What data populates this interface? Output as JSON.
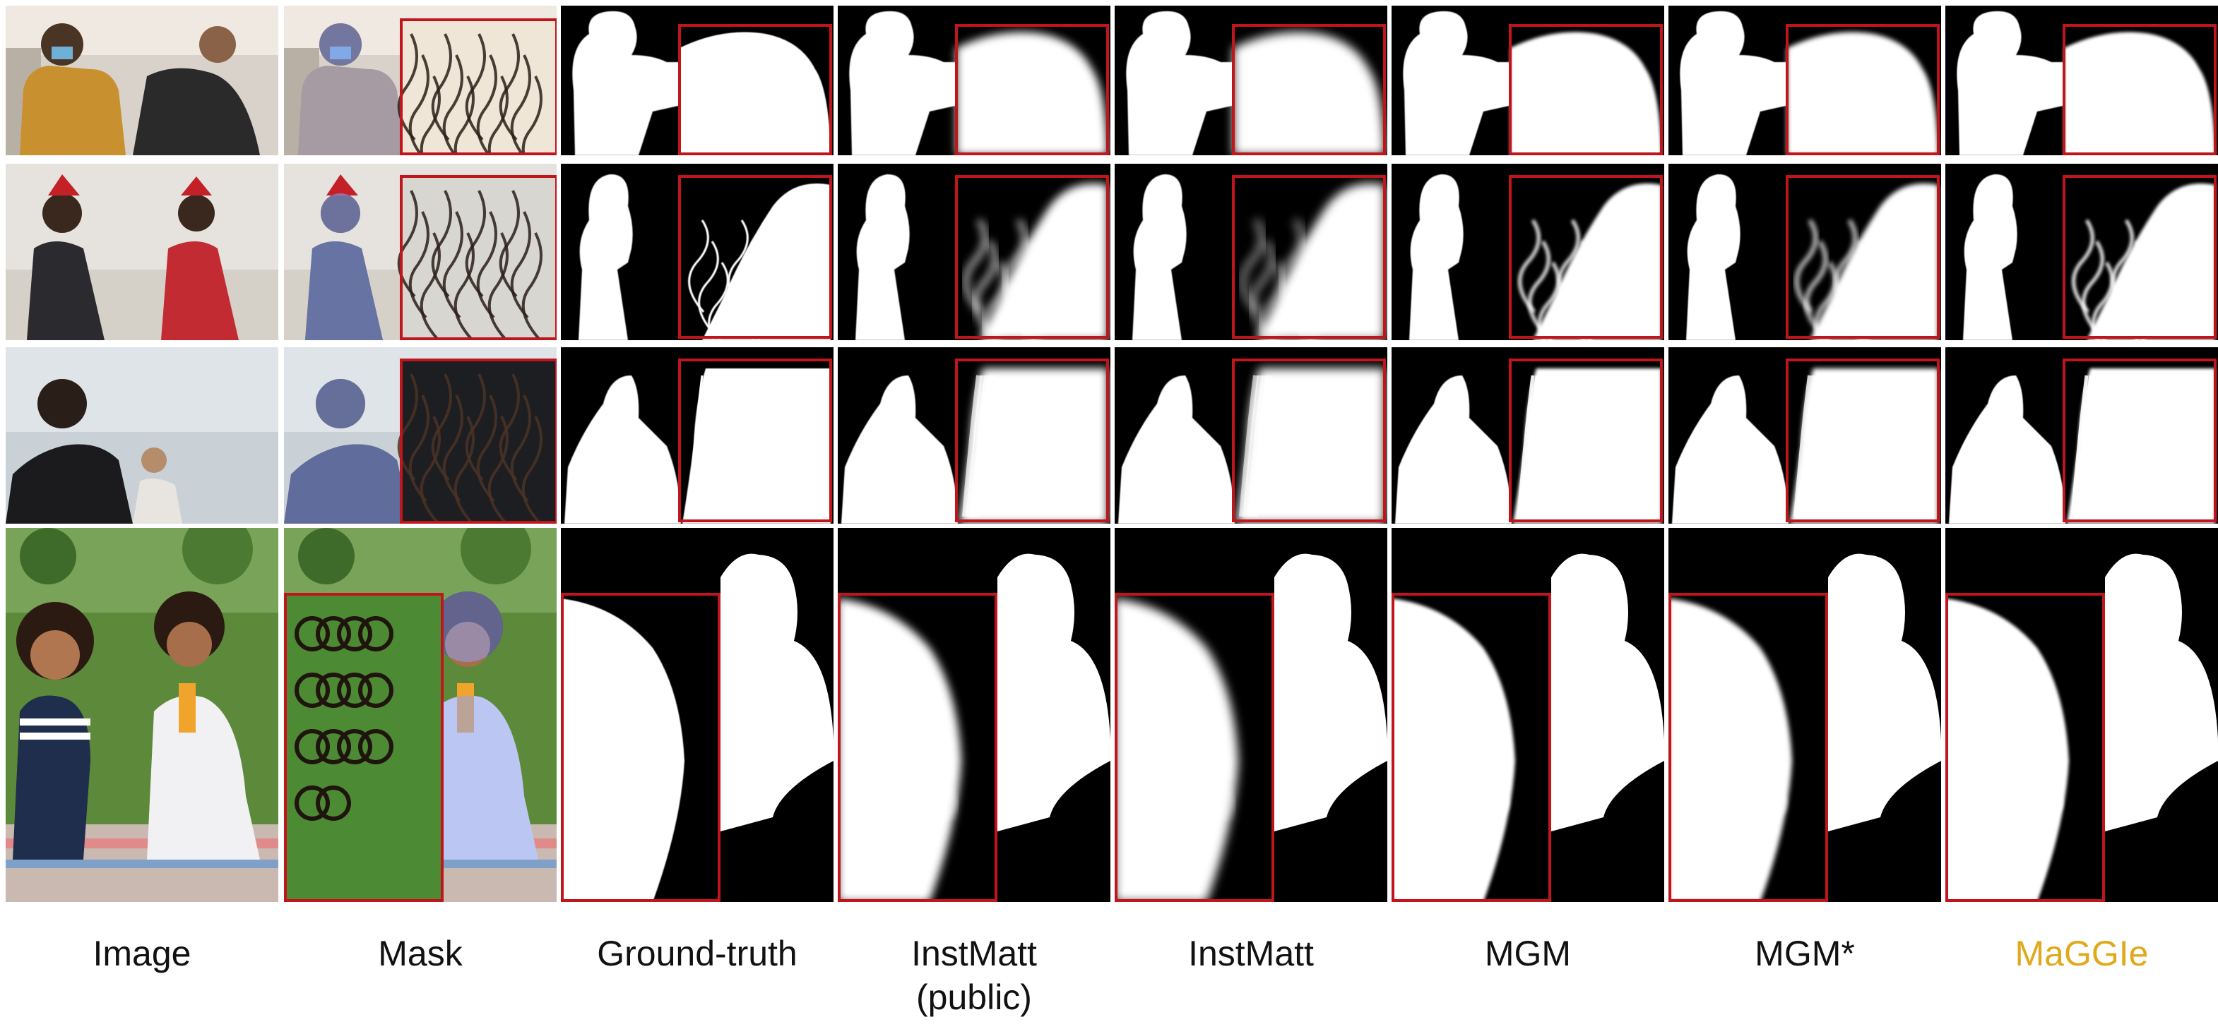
{
  "figure": {
    "columns": [
      {
        "key": "image",
        "label": "Image",
        "color": "#111111"
      },
      {
        "key": "mask",
        "label": "Mask",
        "color": "#111111"
      },
      {
        "key": "gt",
        "label": "Ground-truth",
        "color": "#111111"
      },
      {
        "key": "instmatt_public",
        "label": "InstMatt\n(public)",
        "color": "#111111"
      },
      {
        "key": "instmatt",
        "label": "InstMatt",
        "color": "#111111"
      },
      {
        "key": "mgm",
        "label": "MGM",
        "color": "#111111"
      },
      {
        "key": "mgm_star",
        "label": "MGM*",
        "color": "#111111"
      },
      {
        "key": "maggie",
        "label": "MaGGIe",
        "color": "#e0a91c"
      }
    ],
    "rows": [
      {
        "scene": "two-men-elbow-bump"
      },
      {
        "scene": "two-women-santa-hats"
      },
      {
        "scene": "two-women-sky"
      },
      {
        "scene": "two-girls-picnic"
      }
    ],
    "colors": {
      "zoom_border": "#c0151b",
      "mask_overlay": "#8fa3f2",
      "highlight_label": "#e0a91c"
    }
  }
}
